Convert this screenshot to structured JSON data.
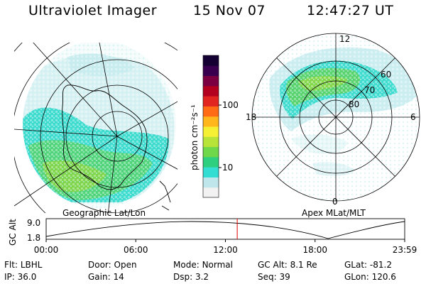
{
  "header": {
    "title": "Ultraviolet Imager",
    "date": "15 Nov 07",
    "time": "12:47:27 UT"
  },
  "left_panel": {
    "caption": "Geographic Lat/Lon"
  },
  "right_panel": {
    "caption": "Apex MLat/MLT",
    "mlt_labels": {
      "top": "12",
      "bottom": "0",
      "left": "18",
      "right": "6"
    },
    "lat_labels": [
      "60",
      "70",
      "80"
    ]
  },
  "colorbar": {
    "unit_label": "photon cm⁻²s⁻¹",
    "ticks": [
      "100",
      "10"
    ],
    "colors": [
      "#f2f2f2",
      "#bfe6ea",
      "#33ddd2",
      "#2ecf7e",
      "#6ed84a",
      "#b8e43a",
      "#f6f035",
      "#ffb51c",
      "#ff6a14",
      "#e22420",
      "#b3001e",
      "#7a0042",
      "#3a0050",
      "#140033"
    ]
  },
  "timeline": {
    "y_axis_label": "GC Alt",
    "y_ticks": [
      "9.0",
      "1.8"
    ],
    "x_ticks": [
      "00:00",
      "06:00",
      "12:00",
      "18:00",
      "23:59"
    ],
    "current_time_hours": 12.79
  },
  "footer": {
    "row1": [
      {
        "label": "Flt:",
        "value": "LBHL"
      },
      {
        "label": "Door:",
        "value": "Open"
      },
      {
        "label": "Mode:",
        "value": "Normal"
      },
      {
        "label": "GC Alt:",
        "value": "8.1 Re"
      },
      {
        "label": "GLat:",
        "value": "-81.2"
      }
    ],
    "row2": [
      {
        "label": "IP:",
        "value": "36.0"
      },
      {
        "label": "Gain:",
        "value": "14"
      },
      {
        "label": "Dsp:",
        "value": "3.2"
      },
      {
        "label": "Seq:",
        "value": "39"
      },
      {
        "label": "GLon:",
        "value": "120.6"
      }
    ]
  }
}
